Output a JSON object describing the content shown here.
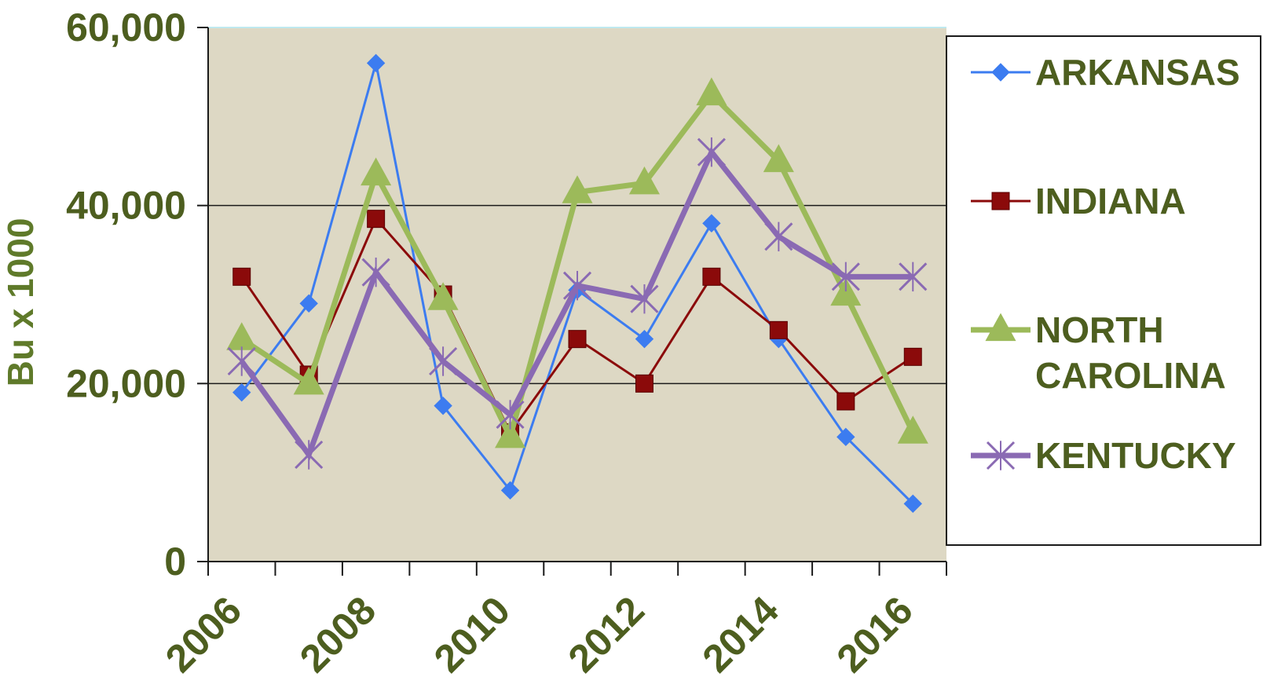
{
  "chart_data": {
    "type": "line",
    "ylabel": "Bu x 1000",
    "xlabel": "",
    "title": "",
    "ylim": [
      0,
      60000
    ],
    "yticks": [
      0,
      20000,
      40000,
      60000
    ],
    "ytick_labels": [
      "0",
      "20,000",
      "40,000",
      "60,000"
    ],
    "x": [
      2006,
      2007,
      2008,
      2009,
      2010,
      2011,
      2012,
      2013,
      2014,
      2015,
      2016
    ],
    "xtick_labels": [
      "2006",
      "2008",
      "2010",
      "2012",
      "2014",
      "2016"
    ],
    "grid": "horizontal",
    "legend_position": "right",
    "plot_background": "#ddd8c4",
    "series": [
      {
        "name": "ARKANSAS",
        "color": "#3c7cf0",
        "marker": "diamond",
        "values": [
          19000,
          29000,
          56000,
          17500,
          8000,
          30500,
          25000,
          38000,
          25000,
          14000,
          6500
        ]
      },
      {
        "name": "INDIANA",
        "color": "#8b0a0a",
        "marker": "square",
        "values": [
          32000,
          21000,
          38500,
          30000,
          14500,
          25000,
          20000,
          32000,
          26000,
          18000,
          23000
        ]
      },
      {
        "name": "NORTH CAROLINA",
        "legend_lines": [
          "NORTH",
          "CAROLINA"
        ],
        "color": "#9cba5a",
        "marker": "triangle",
        "values": [
          25000,
          20000,
          43500,
          29500,
          14000,
          41500,
          42500,
          52500,
          45000,
          30000,
          14500
        ]
      },
      {
        "name": "KENTUCKY",
        "color": "#8a6ab3",
        "marker": "x",
        "values": [
          22500,
          12000,
          32500,
          22500,
          16500,
          31000,
          29500,
          46000,
          36500,
          32000,
          32000
        ]
      }
    ]
  }
}
